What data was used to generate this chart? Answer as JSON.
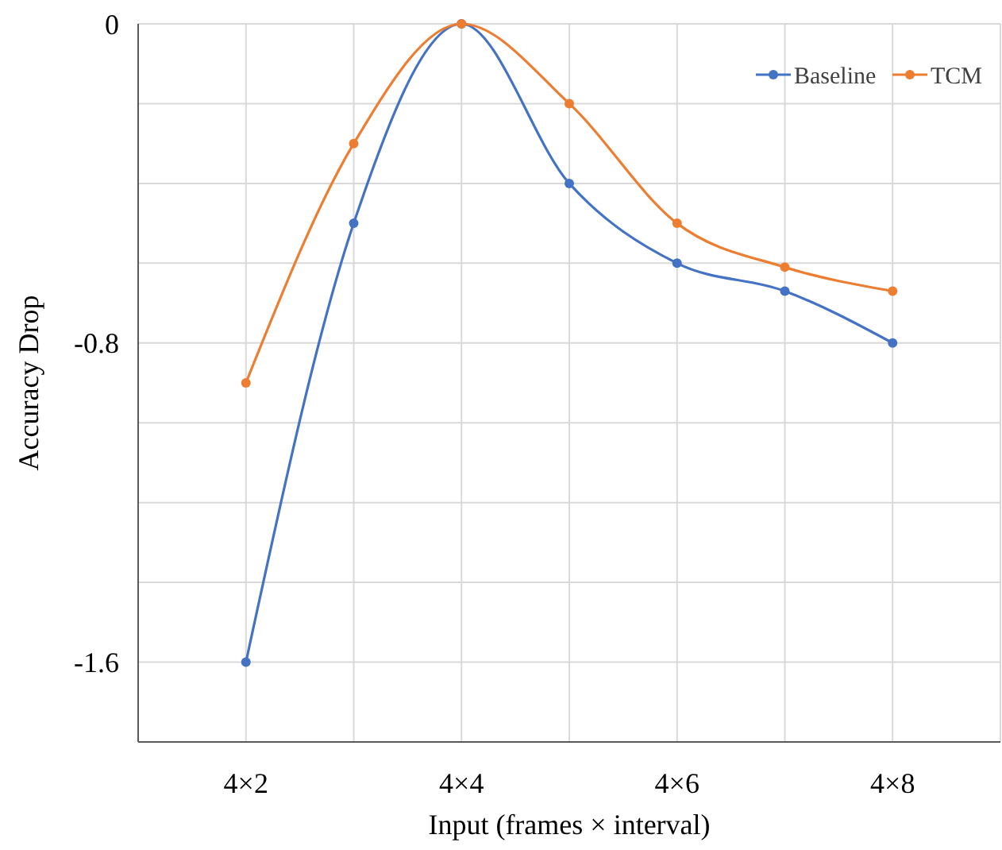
{
  "chart_data": {
    "type": "line",
    "xlabel": "Input (frames × interval)",
    "ylabel": "Accuracy Drop",
    "categories": [
      "4×2",
      null,
      "4×4",
      null,
      "4×6",
      null,
      "4×8"
    ],
    "series": [
      {
        "name": "Baseline",
        "color": "#4472c4",
        "values": [
          -1.6,
          -0.5,
          0,
          -0.4,
          -0.6,
          -0.67,
          -0.8
        ]
      },
      {
        "name": "TCM",
        "color": "#ed7d31",
        "values": [
          -0.9,
          -0.3,
          0,
          -0.2,
          -0.5,
          -0.61,
          -0.67
        ]
      }
    ],
    "ylim": [
      -1.8,
      0
    ],
    "yticks": [
      {
        "value": -1.8,
        "label": null
      },
      -1.6,
      {
        "value": -1.4,
        "label": null
      },
      {
        "value": -1.2,
        "label": null
      },
      {
        "value": -1,
        "label": null
      },
      -0.8,
      {
        "value": -0.6,
        "label": null
      },
      {
        "value": -0.4,
        "label": null
      },
      {
        "value": -0.2,
        "label": null
      },
      0
    ],
    "grid": true,
    "legend": "top right",
    "marker": "circle",
    "line_style": "solid"
  }
}
